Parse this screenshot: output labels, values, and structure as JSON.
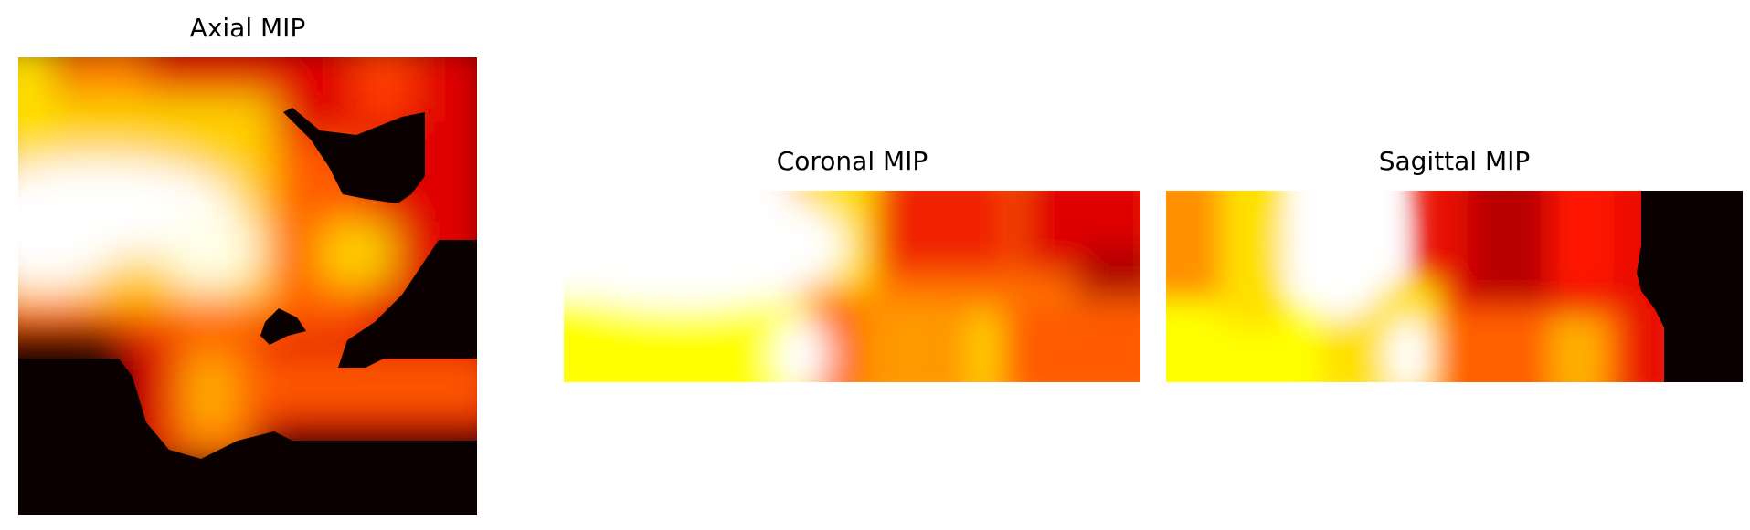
{
  "panels": {
    "axial": {
      "title": "Axial MIP"
    },
    "coronal": {
      "title": "Coronal MIP"
    },
    "sagittal": {
      "title": "Sagittal MIP"
    }
  },
  "chart_data": [
    {
      "type": "heatmap",
      "title": "Axial MIP",
      "colormap": "hot",
      "axes": "off",
      "value_range": [
        0,
        1
      ],
      "description_values": "intensity peaks: bright band across upper-left, hotspot near center-left, dark (0) regions lower-left and upper-right"
    },
    {
      "type": "heatmap",
      "title": "Coronal MIP",
      "colormap": "hot",
      "axes": "off",
      "value_range": [
        0,
        1
      ]
    },
    {
      "type": "heatmap",
      "title": "Sagittal MIP",
      "colormap": "hot",
      "axes": "off",
      "value_range": [
        0,
        1
      ]
    }
  ]
}
